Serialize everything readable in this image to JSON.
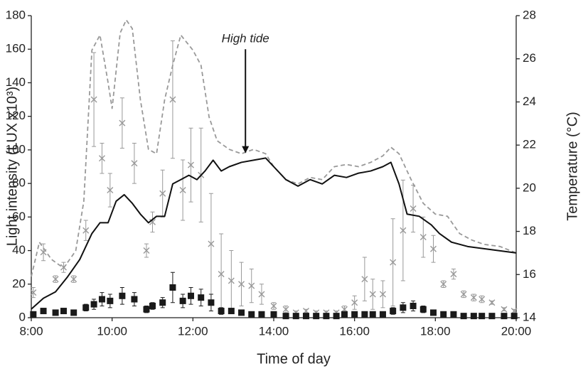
{
  "chart_data": {
    "type": "line",
    "x_label": "Time of day",
    "y_label": "Light intensity (LUX x10³)",
    "y2_label": "Temperature (°C)",
    "xlim": [
      8,
      20
    ],
    "xticks": [
      {
        "value": 8,
        "label": "8:00"
      },
      {
        "value": 10,
        "label": "10:00"
      },
      {
        "value": 12,
        "label": "12:00"
      },
      {
        "value": 14,
        "label": "14:00"
      },
      {
        "value": 16,
        "label": "16:00"
      },
      {
        "value": 18,
        "label": "18:00"
      },
      {
        "value": 20,
        "label": "20:00"
      }
    ],
    "ylim": [
      0,
      180
    ],
    "yticks": [
      0,
      20,
      40,
      60,
      80,
      100,
      120,
      140,
      160,
      180
    ],
    "y2lim": [
      14,
      28
    ],
    "y2ticks": [
      14,
      16,
      18,
      20,
      22,
      24,
      26,
      28
    ],
    "annotations": [
      {
        "text": "High tide",
        "x": 13.3,
        "y": 160,
        "arrow_to": 98
      }
    ],
    "series": [
      {
        "type": "scatter",
        "marker": "x",
        "color": "#999999",
        "x": [
          8.05,
          8.3,
          8.6,
          8.8,
          9.05,
          9.35,
          9.55,
          9.75,
          9.95,
          10.25,
          10.55,
          10.85,
          11.0,
          11.25,
          11.5,
          11.75,
          11.95,
          12.2,
          12.45,
          12.7,
          12.95,
          13.2,
          13.45,
          13.7,
          14.0,
          14.3,
          14.55,
          14.8,
          15.05,
          15.3,
          15.55,
          15.75,
          16.0,
          16.25,
          16.45,
          16.7,
          16.95,
          17.2,
          17.45,
          17.7,
          17.95,
          18.2,
          18.45,
          18.7,
          18.95,
          19.15,
          19.4,
          19.7,
          19.95
        ],
        "values": [
          15,
          39,
          23,
          30,
          23,
          52,
          130,
          95,
          76,
          116,
          92,
          40,
          57,
          74,
          130,
          76,
          91,
          85,
          44,
          26,
          22,
          20,
          19,
          14,
          7,
          5,
          3,
          4,
          3,
          3,
          3,
          5,
          9,
          23,
          14,
          14,
          33,
          52,
          65,
          48,
          41,
          20,
          26,
          14,
          12,
          11,
          9,
          5,
          4
        ],
        "errors": [
          3,
          5,
          2,
          3,
          2,
          6,
          28,
          9,
          10,
          15,
          12,
          4,
          6,
          14,
          35,
          18,
          22,
          28,
          30,
          24,
          18,
          13,
          10,
          6,
          2,
          2,
          1,
          1,
          1,
          1,
          1,
          2,
          4,
          13,
          9,
          8,
          26,
          30,
          14,
          12,
          8,
          2,
          3,
          2,
          2,
          2,
          1,
          1,
          1
        ]
      },
      {
        "type": "scatter",
        "marker": "square",
        "color": "#1a1a1a",
        "x": [
          8.05,
          8.3,
          8.6,
          8.8,
          9.05,
          9.35,
          9.55,
          9.75,
          9.95,
          10.25,
          10.55,
          10.85,
          11.0,
          11.25,
          11.5,
          11.75,
          11.95,
          12.2,
          12.45,
          12.7,
          12.95,
          13.2,
          13.45,
          13.7,
          14.0,
          14.3,
          14.55,
          14.8,
          15.05,
          15.3,
          15.55,
          15.75,
          16.0,
          16.25,
          16.45,
          16.7,
          16.95,
          17.2,
          17.45,
          17.7,
          17.95,
          18.2,
          18.45,
          18.7,
          18.95,
          19.15,
          19.4,
          19.7,
          19.95
        ],
        "values": [
          2,
          4,
          3,
          4,
          3,
          6,
          8,
          11,
          10,
          13,
          11,
          5,
          7,
          9,
          18,
          10,
          13,
          12,
          9,
          4,
          4,
          3,
          2,
          2,
          2,
          1,
          1,
          1,
          1,
          1,
          1,
          2,
          2,
          2,
          2,
          2,
          4,
          6,
          7,
          5,
          3,
          2,
          2,
          1,
          1,
          1,
          1,
          1,
          1
        ],
        "errors": [
          1,
          1,
          1,
          1,
          1,
          2,
          3,
          4,
          4,
          5,
          4,
          2,
          2,
          3,
          9,
          4,
          5,
          5,
          5,
          2,
          1,
          1,
          1,
          1,
          1,
          1,
          1,
          1,
          1,
          1,
          1,
          1,
          1,
          1,
          1,
          1,
          2,
          3,
          3,
          2,
          1,
          1,
          1,
          1,
          1,
          1,
          1,
          1,
          1
        ]
      },
      {
        "type": "line",
        "axis": "y2",
        "dash": true,
        "color": "#999999",
        "x": [
          8.0,
          8.2,
          8.5,
          8.8,
          9.1,
          9.3,
          9.5,
          9.7,
          9.9,
          10.0,
          10.2,
          10.35,
          10.5,
          10.7,
          10.9,
          11.1,
          11.3,
          11.5,
          11.7,
          12.0,
          12.2,
          12.4,
          12.6,
          12.9,
          13.2,
          13.5,
          13.8,
          14.0,
          14.3,
          14.6,
          14.9,
          15.2,
          15.5,
          15.8,
          16.1,
          16.4,
          16.7,
          16.9,
          17.1,
          17.4,
          17.7,
          18.0,
          18.3,
          18.6,
          18.9,
          19.2,
          19.6,
          20.0
        ],
        "values": [
          15.9,
          17.5,
          16.7,
          16.3,
          17.1,
          19.4,
          26.4,
          27.1,
          24.9,
          23.7,
          27.2,
          27.8,
          27.4,
          24.1,
          21.8,
          21.6,
          24.1,
          25.7,
          27.1,
          26.4,
          25.7,
          23.3,
          22.2,
          21.8,
          21.6,
          21.8,
          21.6,
          21.0,
          20.4,
          20.2,
          20.5,
          20.4,
          21.0,
          21.1,
          21.0,
          21.2,
          21.5,
          21.9,
          21.6,
          20.4,
          19.3,
          18.8,
          18.7,
          17.9,
          17.6,
          17.4,
          17.3,
          17.0
        ]
      },
      {
        "type": "line",
        "axis": "y2",
        "dash": false,
        "color": "#111111",
        "x": [
          8.0,
          8.3,
          8.6,
          8.9,
          9.2,
          9.5,
          9.7,
          9.9,
          10.1,
          10.3,
          10.5,
          10.7,
          10.9,
          11.1,
          11.3,
          11.5,
          11.7,
          11.9,
          12.1,
          12.3,
          12.5,
          12.7,
          12.9,
          13.2,
          13.5,
          13.8,
          14.0,
          14.3,
          14.6,
          14.9,
          15.2,
          15.5,
          15.8,
          16.1,
          16.4,
          16.7,
          16.9,
          17.1,
          17.3,
          17.6,
          17.9,
          18.1,
          18.4,
          18.8,
          19.2,
          19.6,
          20.0
        ],
        "values": [
          14.4,
          14.9,
          15.2,
          15.9,
          16.7,
          17.9,
          18.4,
          18.4,
          19.4,
          19.7,
          19.3,
          18.8,
          18.4,
          18.7,
          18.7,
          20.2,
          20.4,
          20.6,
          20.4,
          20.8,
          21.3,
          20.8,
          21.0,
          21.2,
          21.3,
          21.4,
          21.0,
          20.4,
          20.1,
          20.4,
          20.2,
          20.6,
          20.5,
          20.7,
          20.8,
          21.0,
          21.2,
          20.2,
          18.8,
          18.7,
          18.3,
          17.9,
          17.5,
          17.3,
          17.2,
          17.1,
          17.0
        ]
      }
    ]
  }
}
